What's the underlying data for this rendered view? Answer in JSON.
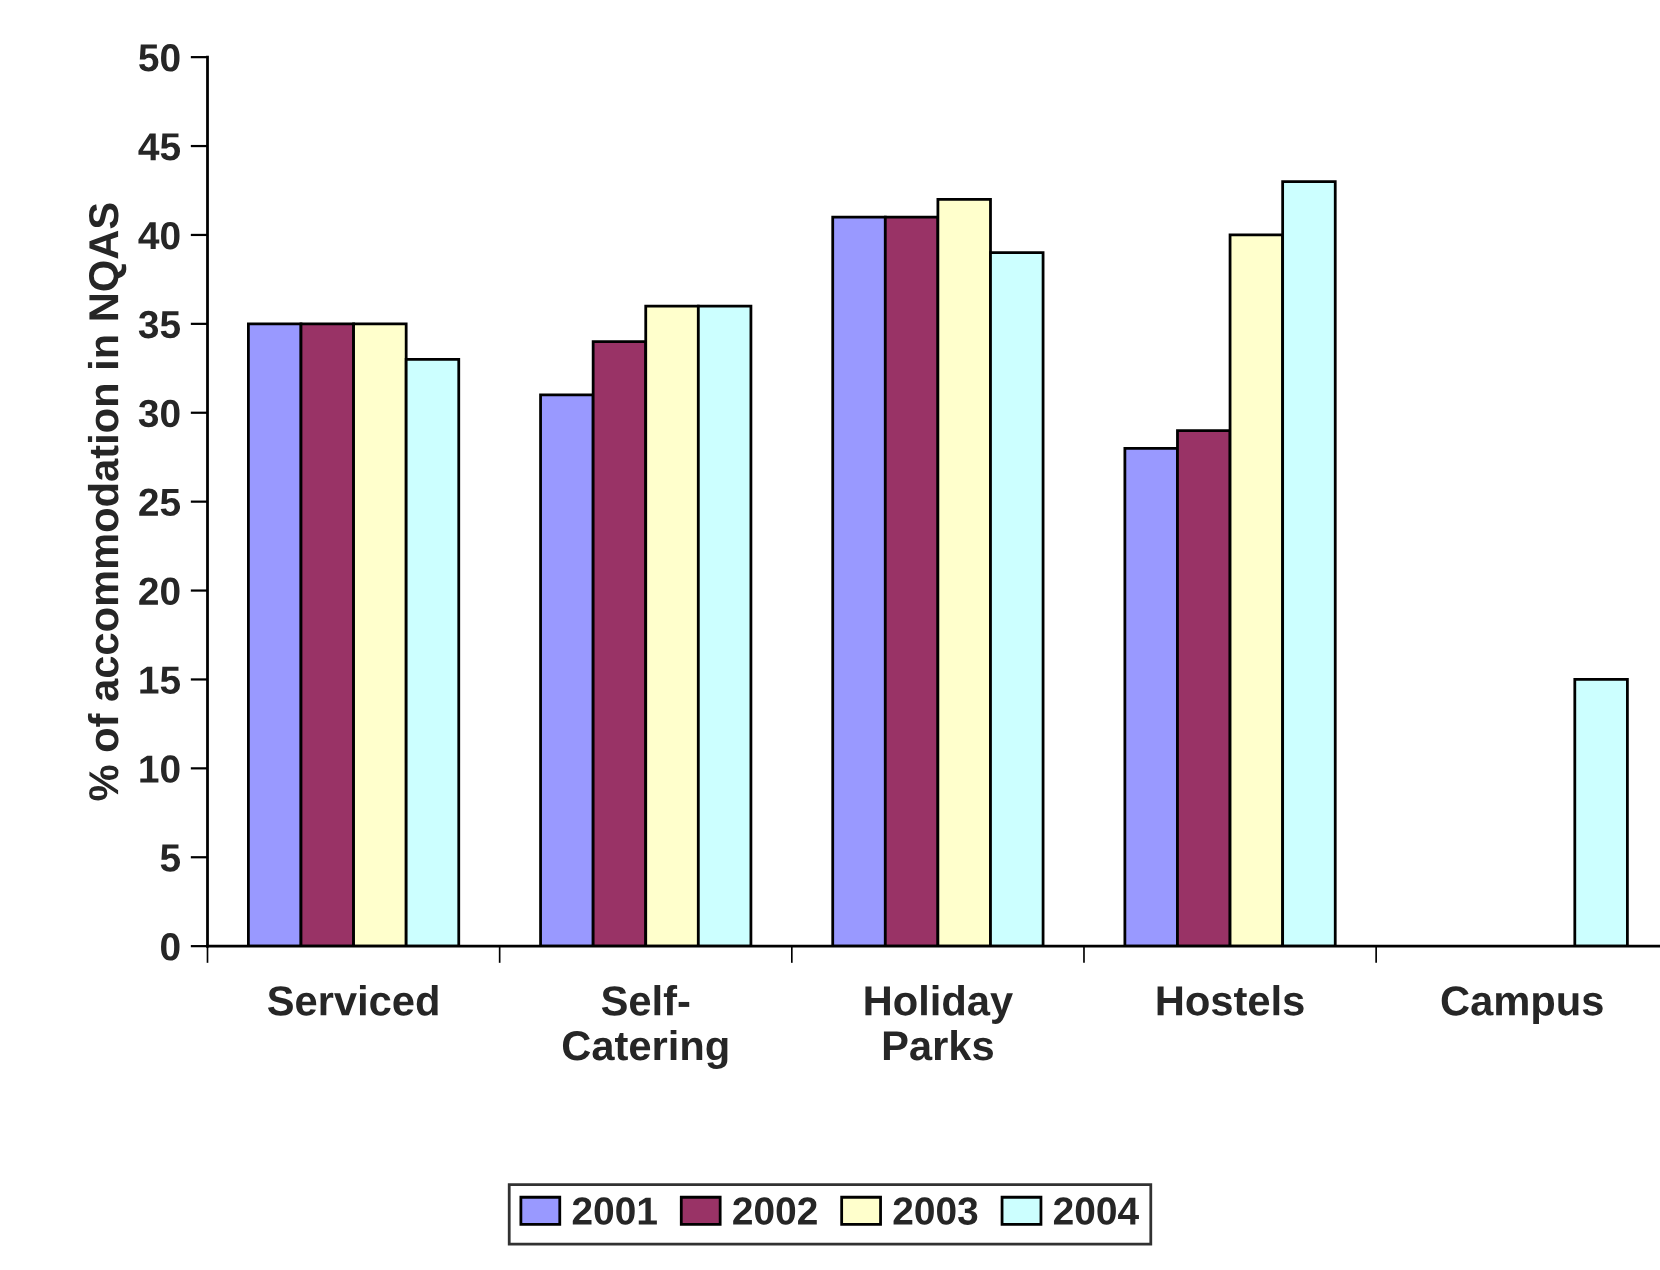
{
  "chart_data": {
    "type": "bar",
    "ylabel": "% of accommodation in NQAS",
    "categories": [
      "Serviced",
      "Self-\nCatering",
      "Holiday\nParks",
      "Hostels",
      "Campus"
    ],
    "series": [
      {
        "name": "2001",
        "color": "#9999ff",
        "values": [
          35,
          31,
          41,
          28,
          null
        ]
      },
      {
        "name": "2002",
        "color": "#993366",
        "values": [
          35,
          34,
          41,
          29,
          null
        ]
      },
      {
        "name": "2003",
        "color": "#ffffcc",
        "values": [
          35,
          36,
          42,
          40,
          null
        ]
      },
      {
        "name": "2004",
        "color": "#ccffff",
        "values": [
          33,
          36,
          39,
          43,
          15
        ]
      }
    ],
    "ylim": [
      0,
      50
    ],
    "yticks": [
      0,
      5,
      10,
      15,
      20,
      25,
      30,
      35,
      40,
      45,
      50
    ],
    "grid": false,
    "legend": "bottom"
  }
}
